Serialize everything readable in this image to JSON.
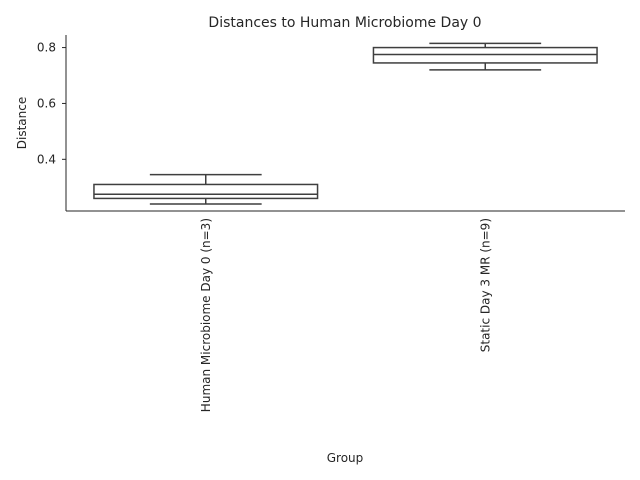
{
  "chart_data": {
    "type": "box",
    "title": "Distances to Human Microbiome Day 0",
    "xlabel": "Group",
    "ylabel": "Distance",
    "ylim": [
      0.215,
      0.845
    ],
    "yticks": [
      0.4,
      0.6,
      0.8
    ],
    "ytick_labels": [
      "0.4",
      "0.6",
      "0.8"
    ],
    "grid": false,
    "categories": [
      "Human Microbiome Day 0 (n=3)",
      "Static Day 3 MR (n=9)"
    ],
    "boxes": [
      {
        "category": "Human Microbiome Day 0 (n=3)",
        "whisker_low": 0.24,
        "q1": 0.26,
        "median": 0.275,
        "q3": 0.31,
        "whisker_high": 0.345
      },
      {
        "category": "Static Day 3 MR (n=9)",
        "whisker_low": 0.72,
        "q1": 0.745,
        "median": 0.775,
        "q3": 0.8,
        "whisker_high": 0.815
      }
    ],
    "colors": {
      "stroke": "#3f3f3f",
      "box_fill": "#ffffff",
      "text": "#262626",
      "axis": "#262626"
    }
  }
}
